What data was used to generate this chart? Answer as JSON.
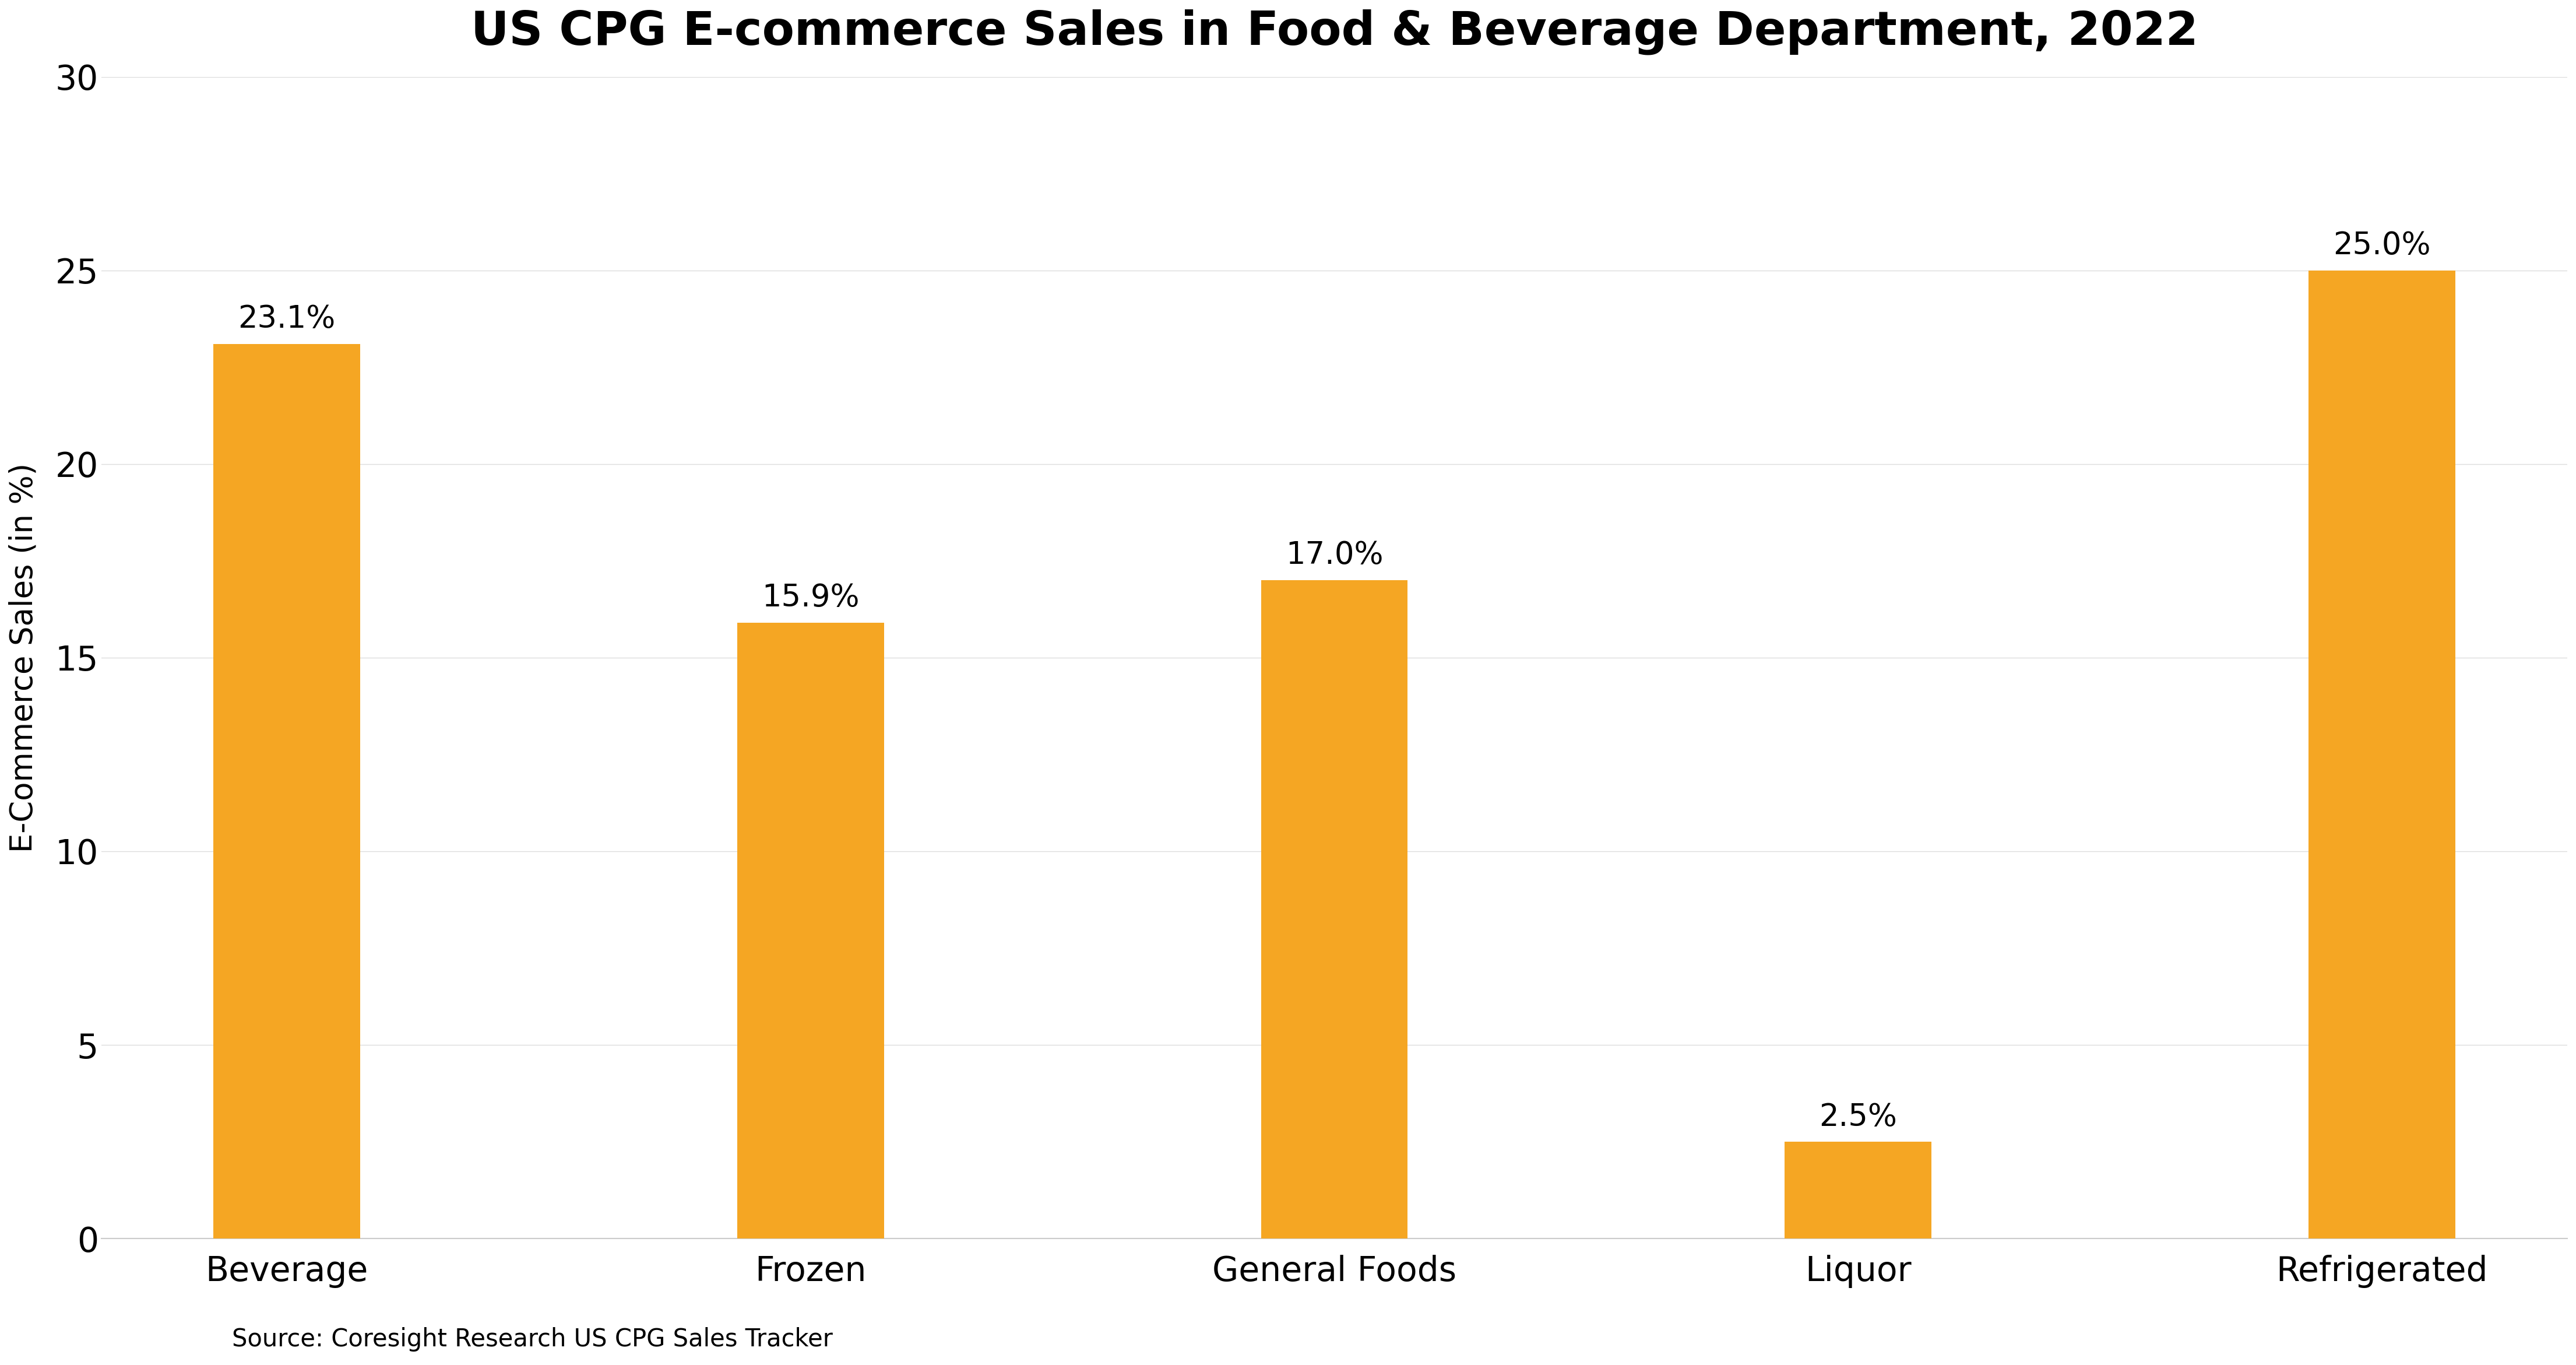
{
  "title": "US CPG E-commerce Sales in Food & Beverage Department, 2022",
  "categories": [
    "Beverage",
    "Frozen",
    "General Foods",
    "Liquor",
    "Refrigerated"
  ],
  "values": [
    23.1,
    15.9,
    17.0,
    2.5,
    25.0
  ],
  "bar_color": "#F5A623",
  "ylabel": "E-Commerce Sales (in %)",
  "ylim": [
    0,
    30
  ],
  "yticks": [
    0,
    5,
    10,
    15,
    20,
    25,
    30
  ],
  "source_text": "Source: Coresight Research US CPG Sales Tracker",
  "title_fontsize": 58,
  "label_fontsize": 38,
  "tick_fontsize": 42,
  "annotation_fontsize": 38,
  "source_fontsize": 30,
  "background_color": "#FFFFFF",
  "bar_width": 0.28,
  "spine_color": "#cccccc",
  "grid_color": "#dddddd"
}
